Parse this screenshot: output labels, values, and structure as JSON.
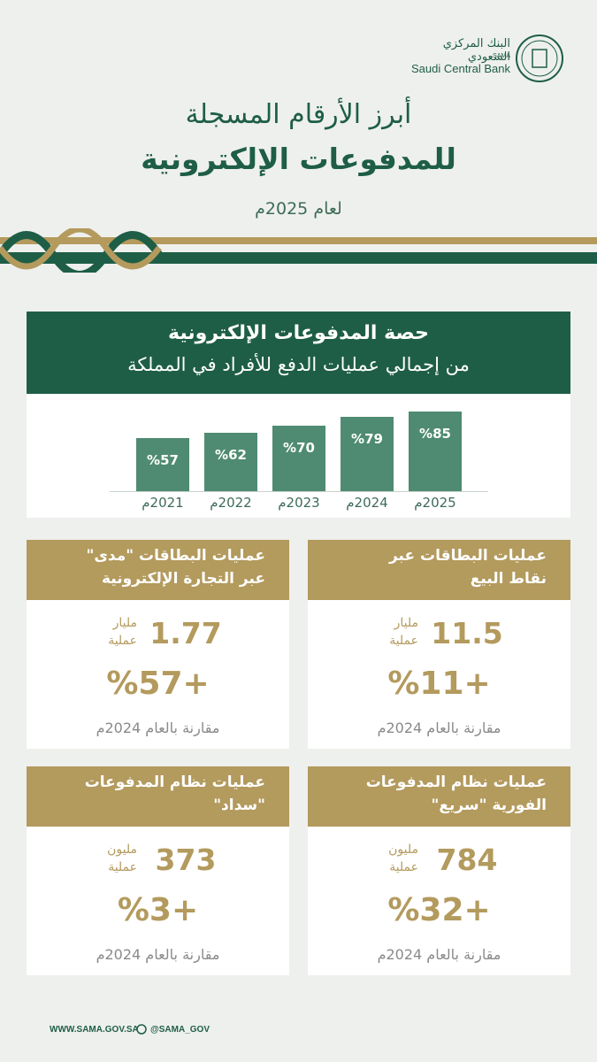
{
  "header": {
    "logo_arabic": "البنك المركزي السعودي",
    "logo_sama": "SAMA",
    "logo_english": "Saudi Central Bank",
    "title_line1": "أبرز الأرقام المسجلة",
    "title_line2": "للمدفوعات الإلكترونية",
    "subtitle": "لعام 2025م"
  },
  "chart_data": {
    "type": "bar",
    "title": "حصة المدفوعات الإلكترونية",
    "subtitle": "من إجمالي عمليات الدفع للأفراد في المملكة",
    "categories": [
      "2021م",
      "2022م",
      "2023م",
      "2024م",
      "2025م"
    ],
    "values": [
      57,
      62,
      70,
      79,
      85
    ],
    "value_labels": [
      "%57",
      "%62",
      "%70",
      "%79",
      "%85"
    ],
    "color": "#4f8b72",
    "ylim": [
      0,
      100
    ]
  },
  "cards": [
    {
      "title_lines": [
        "عمليات البطاقات عبر",
        "نقاط البيع"
      ],
      "value": 11.5,
      "unit_lines": [
        "مليار",
        "عملية"
      ],
      "change": "%11+",
      "comparison": "مقارنة بالعام 2024م"
    },
    {
      "title_lines": [
        "عمليات البطاقات \"مدى\"",
        "عبر التجارة الإلكترونية"
      ],
      "value": 1.77,
      "unit_lines": [
        "مليار",
        "عملية"
      ],
      "change": "%57+",
      "comparison": "مقارنة بالعام 2024م"
    },
    {
      "title_lines": [
        "عمليات نظام المدفوعات",
        "الفورية \"سريع\""
      ],
      "value": 784,
      "unit_lines": [
        "مليون",
        "عملية"
      ],
      "change": "%32+",
      "comparison": "مقارنة بالعام 2024م"
    },
    {
      "title_lines": [
        "عمليات نظام المدفوعات",
        "\"سداد\""
      ],
      "value": 373,
      "unit_lines": [
        "مليون",
        "عملية"
      ],
      "change": "%3+",
      "comparison": "مقارنة بالعام 2024م"
    }
  ],
  "footer": {
    "website": "WWW.SAMA.GOV.SA",
    "social": "@SAMA_GOV"
  }
}
